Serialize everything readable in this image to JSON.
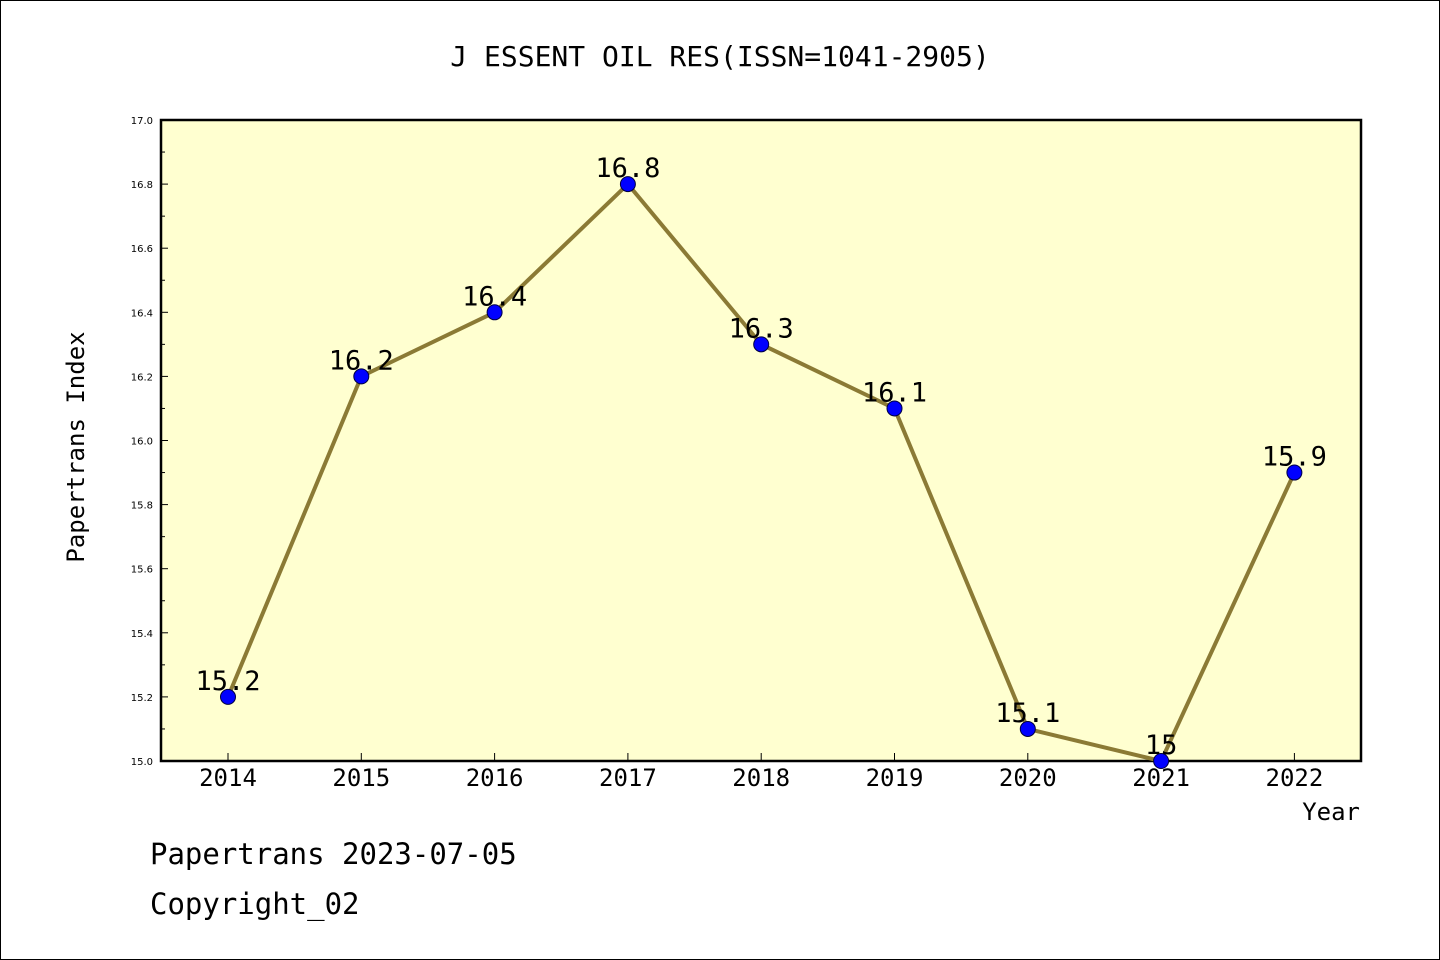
{
  "chart_data": {
    "type": "line",
    "title": "J ESSENT OIL RES(ISSN=1041-2905)",
    "xlabel": "Year",
    "ylabel": "Papertrans Index",
    "categories": [
      "2014",
      "2015",
      "2016",
      "2017",
      "2018",
      "2019",
      "2020",
      "2021",
      "2022"
    ],
    "values": [
      15.2,
      16.2,
      16.4,
      16.8,
      16.3,
      16.1,
      15.1,
      15.0,
      15.9
    ],
    "data_labels": [
      "15.2",
      "16.2",
      "16.4",
      "16.8",
      "16.3",
      "16.1",
      "15.1",
      "15",
      "15.9"
    ],
    "ylim": [
      15.0,
      17.0
    ],
    "yticks": [
      "15.0",
      "15.2",
      "15.4",
      "15.6",
      "15.8",
      "16.0",
      "16.2",
      "16.4",
      "16.6",
      "16.8",
      "17.0"
    ],
    "grid": false,
    "legend": "none"
  },
  "colors": {
    "plot_background": "#ffffd0",
    "line": "#8b7a35",
    "marker": "#0000ff",
    "axis": "#000000"
  },
  "footer": {
    "line1": "Papertrans 2023-07-05",
    "line2": "Copyright_02"
  }
}
